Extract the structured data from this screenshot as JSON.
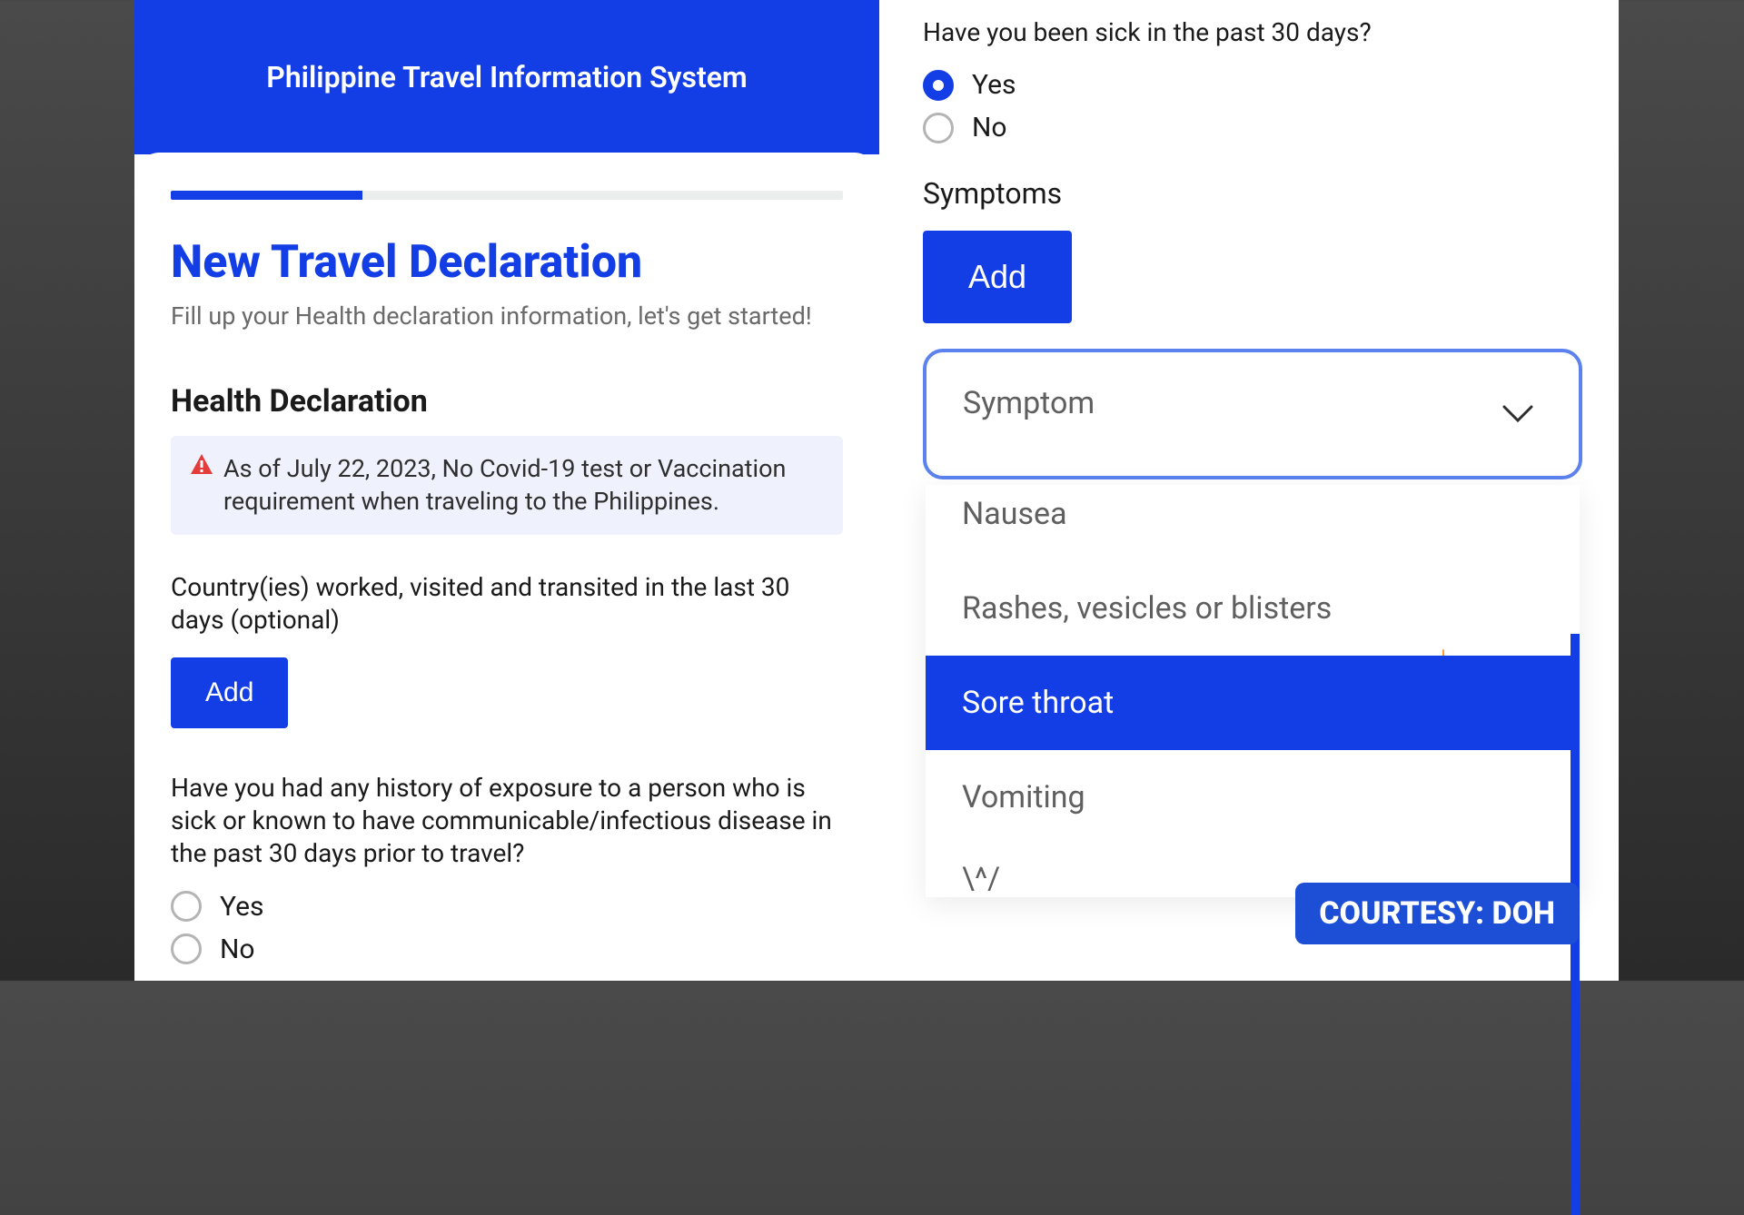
{
  "colors": {
    "primary": "#143ee5",
    "alert_bg": "#eff1fc",
    "text_muted": "#6a6a6a",
    "text": "#1a1a1a",
    "ring_muted": "#b4b4b4",
    "select_border": "#5b82ef",
    "courtesy_bg": "#1c4fd6",
    "sun": "#fd9b3b"
  },
  "header": {
    "title": "Philippine Travel Information System"
  },
  "progress": {
    "percent": 28.5
  },
  "page": {
    "title": "New Travel Declaration",
    "subtitle": "Fill up your Health declaration information, let's get started!"
  },
  "health": {
    "section_title": "Health Declaration",
    "alert": "As of July 22, 2023, No Covid-19 test or Vaccination requirement when traveling to the Philippines.",
    "countries_label": "Country(ies) worked, visited and transited in the last 30 days (optional)",
    "add_label": "Add"
  },
  "q_exposure": {
    "text": "Have you had any history of exposure to a person who is sick or known to have communicable/infectious disease in the past 30 days prior to travel?",
    "yes": "Yes",
    "no": "No",
    "selected": null
  },
  "q_sick": {
    "text": "Have you been sick in the past 30 days?",
    "yes": "Yes",
    "no": "No",
    "selected": "yes"
  },
  "symptoms": {
    "title": "Symptoms",
    "add_label": "Add",
    "select_label": "Symptom",
    "options": [
      {
        "label": "Nausea",
        "highlight": false
      },
      {
        "label": "Rashes, vesicles or blisters",
        "highlight": false
      },
      {
        "label": "Sore throat",
        "highlight": true
      },
      {
        "label": "Vomiting",
        "highlight": false
      }
    ]
  },
  "courtesy": "COURTESY: DOH"
}
